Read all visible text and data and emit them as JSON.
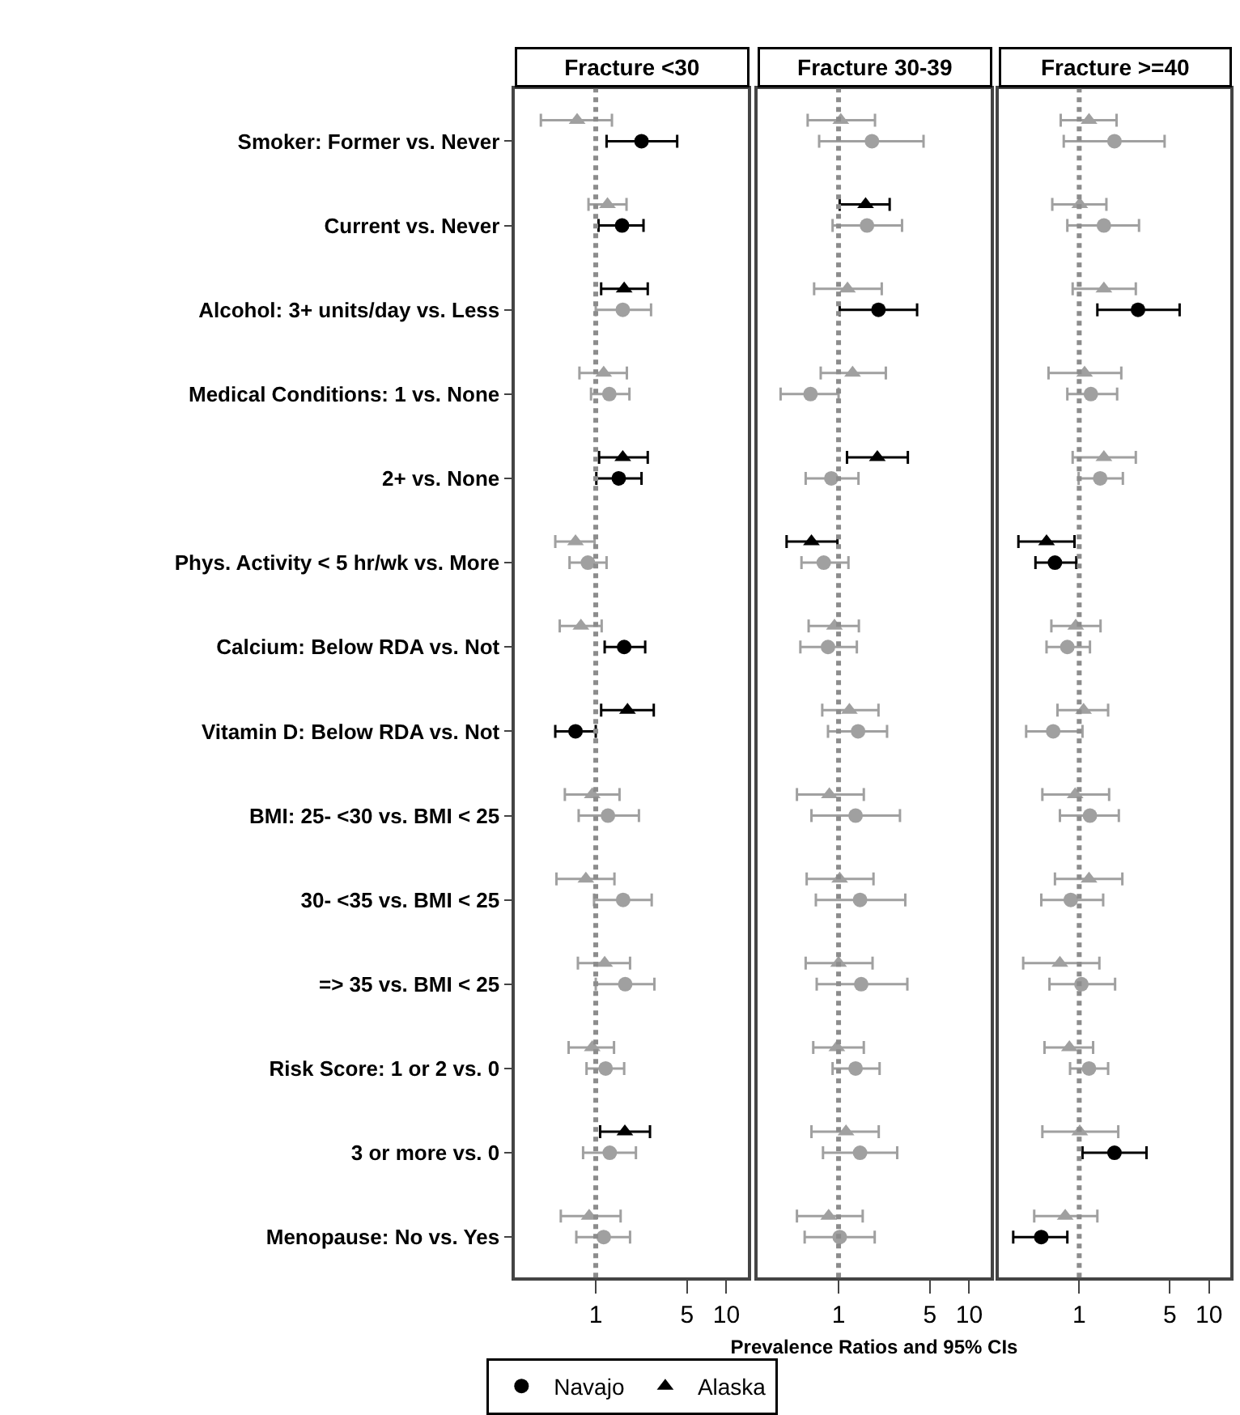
{
  "chart_data": [
    {
      "type": "scatter",
      "orientation": "horizontal",
      "title": "Fracture <30",
      "log": "x",
      "xlim": [
        0.24,
        14.6
      ],
      "xticks": [
        1,
        5,
        10
      ],
      "tick_labels": true,
      "legend": "bottom",
      "categories": [
        "Smoker: Former vs. Never",
        "Current vs. Never",
        "Alcohol: 3+ units/day vs. Less",
        "Medical Conditions: 1 vs. None",
        "2+ vs. None",
        "Phys. Activity < 5 hr/wk vs. More",
        "Calcium: Below RDA vs. Not",
        "Vitamin D: Below RDA vs. Not",
        "BMI: 25- <30 vs. BMI < 25",
        "30- <35 vs. BMI < 25",
        "=> 35 vs. BMI < 25",
        "Risk Score: 1 or 2 vs. 0",
        "3 or more vs. 0",
        "Menopause: No vs. Yes"
      ],
      "ref_lines": [
        {
          "axis": "x",
          "value": 1,
          "label": null,
          "color": "#8c8c8c",
          "line_style": "dotted"
        }
      ],
      "series": [
        {
          "name": "Navajo",
          "color": "#000000",
          "marker": "circle",
          "values": [
            2.24,
            1.59,
            1.61,
            1.27,
            1.5,
            0.87,
            1.65,
            0.7,
            1.24,
            1.62,
            1.68,
            1.19,
            1.28,
            1.15
          ],
          "errors": [
            [
              1.21,
              4.2
            ],
            [
              1.05,
              2.32
            ],
            [
              1.0,
              2.65
            ],
            [
              0.92,
              1.81
            ],
            [
              1.01,
              2.24
            ],
            [
              0.63,
              1.21
            ],
            [
              1.17,
              2.39
            ],
            [
              0.49,
              1.0
            ],
            [
              0.74,
              2.14
            ],
            [
              0.97,
              2.68
            ],
            [
              1.0,
              2.81
            ],
            [
              0.85,
              1.65
            ],
            [
              0.8,
              2.03
            ],
            [
              0.71,
              1.83
            ]
          ],
          "colors": [
            "#000000",
            "#000000",
            "#a0a0a0",
            "#a0a0a0",
            "#000000",
            "#a0a0a0",
            "#000000",
            "#000000",
            "#a0a0a0",
            "#a0a0a0",
            "#a0a0a0",
            "#a0a0a0",
            "#a0a0a0",
            "#a0a0a0"
          ]
        },
        {
          "name": "Alaska",
          "color": "#000000",
          "marker": "triangle",
          "values": [
            0.72,
            1.23,
            1.65,
            1.15,
            1.61,
            0.7,
            0.77,
            1.75,
            0.94,
            0.84,
            1.17,
            0.94,
            1.67,
            0.89
          ],
          "errors": [
            [
              0.38,
              1.33
            ],
            [
              0.88,
              1.72
            ],
            [
              1.1,
              2.5
            ],
            [
              0.75,
              1.73
            ],
            [
              1.06,
              2.5
            ],
            [
              0.49,
              0.98
            ],
            [
              0.53,
              1.11
            ],
            [
              1.1,
              2.78
            ],
            [
              0.58,
              1.52
            ],
            [
              0.5,
              1.39
            ],
            [
              0.73,
              1.83
            ],
            [
              0.62,
              1.38
            ],
            [
              1.08,
              2.6
            ],
            [
              0.54,
              1.55
            ]
          ],
          "colors": [
            "#a0a0a0",
            "#a0a0a0",
            "#000000",
            "#a0a0a0",
            "#000000",
            "#a0a0a0",
            "#a0a0a0",
            "#000000",
            "#a0a0a0",
            "#a0a0a0",
            "#a0a0a0",
            "#a0a0a0",
            "#000000",
            "#a0a0a0"
          ]
        }
      ]
    },
    {
      "type": "scatter",
      "orientation": "horizontal",
      "title": "Fracture 30-39",
      "xlabel": "Prevalence Ratios and 95% CIs",
      "log": "x",
      "xlim": [
        0.24,
        14.6
      ],
      "xticks": [
        1,
        5,
        10
      ],
      "tick_labels": "x",
      "ref_lines": [
        {
          "axis": "x",
          "value": 1,
          "label": null,
          "color": "#8c8c8c",
          "line_style": "dotted"
        }
      ],
      "series": [
        {
          "marker": "circle",
          "values": [
            1.8,
            1.65,
            2.02,
            0.61,
            0.88,
            0.77,
            0.83,
            1.41,
            1.35,
            1.46,
            1.49,
            1.35,
            1.46,
            1.02
          ],
          "errors": [
            [
              0.71,
              4.47
            ],
            [
              0.9,
              3.06
            ],
            [
              1.02,
              3.99
            ],
            [
              0.36,
              1.0
            ],
            [
              0.56,
              1.42
            ],
            [
              0.52,
              1.19
            ],
            [
              0.51,
              1.38
            ],
            [
              0.83,
              2.35
            ],
            [
              0.62,
              2.95
            ],
            [
              0.67,
              3.24
            ],
            [
              0.68,
              3.36
            ],
            [
              0.9,
              2.06
            ],
            [
              0.76,
              2.81
            ],
            [
              0.55,
              1.89
            ]
          ],
          "colors": [
            "#a0a0a0",
            "#a0a0a0",
            "#000000",
            "#a0a0a0",
            "#a0a0a0",
            "#a0a0a0",
            "#a0a0a0",
            "#a0a0a0",
            "#a0a0a0",
            "#a0a0a0",
            "#a0a0a0",
            "#a0a0a0",
            "#a0a0a0",
            "#a0a0a0"
          ]
        },
        {
          "marker": "triangle",
          "values": [
            1.04,
            1.61,
            1.17,
            1.28,
            1.98,
            0.62,
            0.93,
            1.21,
            0.85,
            1.02,
            1.0,
            0.97,
            1.14,
            0.84
          ],
          "errors": [
            [
              0.58,
              1.9
            ],
            [
              1.02,
              2.46
            ],
            [
              0.65,
              2.14
            ],
            [
              0.73,
              2.3
            ],
            [
              1.16,
              3.39
            ],
            [
              0.4,
              0.98
            ],
            [
              0.59,
              1.43
            ],
            [
              0.75,
              2.02
            ],
            [
              0.48,
              1.56
            ],
            [
              0.57,
              1.85
            ],
            [
              0.56,
              1.82
            ],
            [
              0.64,
              1.56
            ],
            [
              0.62,
              2.03
            ],
            [
              0.48,
              1.53
            ]
          ],
          "colors": [
            "#a0a0a0",
            "#000000",
            "#a0a0a0",
            "#a0a0a0",
            "#000000",
            "#000000",
            "#a0a0a0",
            "#a0a0a0",
            "#a0a0a0",
            "#a0a0a0",
            "#a0a0a0",
            "#a0a0a0",
            "#a0a0a0",
            "#a0a0a0"
          ]
        }
      ]
    },
    {
      "type": "scatter",
      "orientation": "horizontal",
      "title": "Fracture >=40",
      "log": "x",
      "xlim": [
        0.24,
        14.6
      ],
      "xticks": [
        1,
        5,
        10
      ],
      "tick_labels": "x",
      "ref_lines": [
        {
          "axis": "x",
          "value": 1,
          "label": null,
          "color": "#8c8c8c",
          "line_style": "dotted"
        }
      ],
      "series": [
        {
          "marker": "circle",
          "values": [
            1.87,
            1.55,
            2.84,
            1.23,
            1.45,
            0.65,
            0.81,
            0.63,
            1.21,
            0.86,
            1.04,
            1.19,
            1.87,
            0.51
          ],
          "errors": [
            [
              0.76,
              4.55
            ],
            [
              0.81,
              2.89
            ],
            [
              1.38,
              5.94
            ],
            [
              0.81,
              1.96
            ],
            [
              0.99,
              2.17
            ],
            [
              0.46,
              0.95
            ],
            [
              0.56,
              1.21
            ],
            [
              0.39,
              1.06
            ],
            [
              0.71,
              2.02
            ],
            [
              0.51,
              1.53
            ],
            [
              0.59,
              1.89
            ],
            [
              0.85,
              1.67
            ],
            [
              1.06,
              3.3
            ],
            [
              0.31,
              0.81
            ]
          ],
          "colors": [
            "#a0a0a0",
            "#a0a0a0",
            "#000000",
            "#a0a0a0",
            "#a0a0a0",
            "#000000",
            "#a0a0a0",
            "#a0a0a0",
            "#a0a0a0",
            "#a0a0a0",
            "#a0a0a0",
            "#a0a0a0",
            "#000000",
            "#000000"
          ]
        },
        {
          "marker": "triangle",
          "values": [
            1.19,
            1.01,
            1.55,
            1.1,
            1.55,
            0.56,
            0.94,
            1.08,
            0.93,
            1.19,
            0.71,
            0.84,
            1.01,
            0.78
          ],
          "errors": [
            [
              0.72,
              1.94
            ],
            [
              0.62,
              1.62
            ],
            [
              0.89,
              2.73
            ],
            [
              0.58,
              2.11
            ],
            [
              0.89,
              2.73
            ],
            [
              0.34,
              0.92
            ],
            [
              0.61,
              1.46
            ],
            [
              0.68,
              1.67
            ],
            [
              0.52,
              1.7
            ],
            [
              0.65,
              2.15
            ],
            [
              0.37,
              1.43
            ],
            [
              0.54,
              1.28
            ],
            [
              0.52,
              2.0
            ],
            [
              0.45,
              1.38
            ]
          ],
          "colors": [
            "#a0a0a0",
            "#a0a0a0",
            "#a0a0a0",
            "#a0a0a0",
            "#a0a0a0",
            "#000000",
            "#a0a0a0",
            "#a0a0a0",
            "#a0a0a0",
            "#a0a0a0",
            "#a0a0a0",
            "#a0a0a0",
            "#a0a0a0",
            "#a0a0a0"
          ]
        }
      ]
    }
  ]
}
